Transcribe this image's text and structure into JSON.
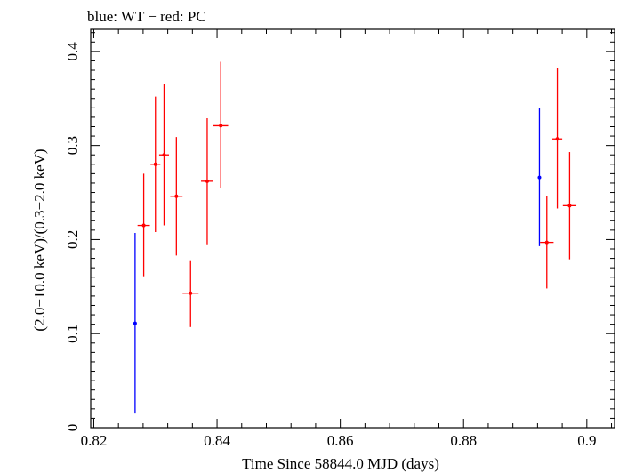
{
  "chart_data": {
    "type": "scatter",
    "title": "blue: WT − red: PC",
    "xlabel": "Time Since 58844.0 MJD (days)",
    "ylabel": "(2.0−10.0 keV)/(0.3−2.0 keV)",
    "xlim": [
      0.8195,
      0.9045
    ],
    "ylim": [
      0,
      0.4235
    ],
    "xticks": [
      0.82,
      0.84,
      0.86,
      0.88,
      0.9
    ],
    "xtick_labels": [
      "0.82",
      "0.84",
      "0.86",
      "0.88",
      "0.9"
    ],
    "yticks": [
      0,
      0.1,
      0.2,
      0.3,
      0.4
    ],
    "ytick_labels": [
      "0",
      "0.1",
      "0.2",
      "0.3",
      "0.4"
    ],
    "grid": false,
    "series": [
      {
        "name": "WT",
        "color": "#0000ff",
        "points": [
          {
            "x": 0.8267,
            "y": 0.111,
            "xerr": 0.0,
            "ylo": 0.015,
            "yhi": 0.207
          },
          {
            "x": 0.8923,
            "y": 0.266,
            "xerr": 0.0,
            "ylo": 0.193,
            "yhi": 0.34
          }
        ]
      },
      {
        "name": "PC",
        "color": "#ff0000",
        "points": [
          {
            "x": 0.8281,
            "y": 0.215,
            "xerr": 0.001,
            "ylo": 0.161,
            "yhi": 0.27
          },
          {
            "x": 0.83,
            "y": 0.28,
            "xerr": 0.0008,
            "ylo": 0.208,
            "yhi": 0.352
          },
          {
            "x": 0.8314,
            "y": 0.29,
            "xerr": 0.0008,
            "ylo": 0.215,
            "yhi": 0.365
          },
          {
            "x": 0.8334,
            "y": 0.246,
            "xerr": 0.001,
            "ylo": 0.183,
            "yhi": 0.309
          },
          {
            "x": 0.8357,
            "y": 0.143,
            "xerr": 0.0013,
            "ylo": 0.107,
            "yhi": 0.178
          },
          {
            "x": 0.8384,
            "y": 0.262,
            "xerr": 0.001,
            "ylo": 0.195,
            "yhi": 0.329
          },
          {
            "x": 0.8406,
            "y": 0.321,
            "xerr": 0.0012,
            "ylo": 0.255,
            "yhi": 0.389
          },
          {
            "x": 0.8935,
            "y": 0.197,
            "xerr": 0.0011,
            "ylo": 0.148,
            "yhi": 0.246
          },
          {
            "x": 0.8952,
            "y": 0.307,
            "xerr": 0.0008,
            "ylo": 0.233,
            "yhi": 0.382
          },
          {
            "x": 0.8972,
            "y": 0.236,
            "xerr": 0.0011,
            "ylo": 0.179,
            "yhi": 0.293
          }
        ]
      }
    ]
  }
}
